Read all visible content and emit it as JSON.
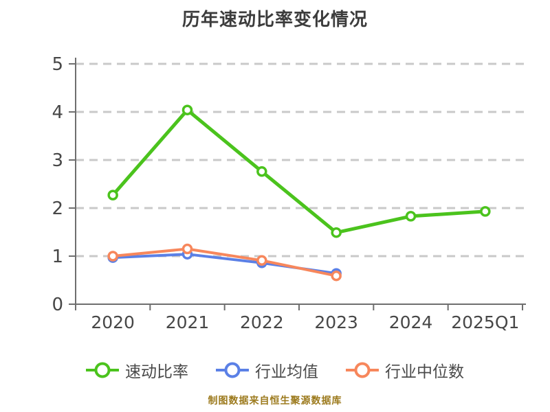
{
  "title": "历年速动比率变化情况",
  "source_note": "制图数据来自恒生聚源数据库",
  "chart_data": {
    "type": "line",
    "categories": [
      "2020",
      "2021",
      "2022",
      "2023",
      "2024",
      "2025Q1"
    ],
    "series": [
      {
        "name": "速动比率",
        "color": "#4bc31d",
        "values": [
          2.27,
          4.04,
          2.76,
          1.49,
          1.83,
          1.93
        ]
      },
      {
        "name": "行业均值",
        "color": "#5b80e6",
        "values": [
          0.97,
          1.04,
          0.86,
          0.64,
          null,
          null
        ]
      },
      {
        "name": "行业中位数",
        "color": "#f7875c",
        "values": [
          1.0,
          1.15,
          0.91,
          0.59,
          null,
          null
        ]
      }
    ],
    "xlabel": "",
    "ylabel": "",
    "ylim": [
      0,
      5
    ],
    "yticks": [
      0,
      1,
      2,
      3,
      4,
      5
    ],
    "grid": "horizontal-dashed",
    "legend_position": "bottom",
    "marker": "circle-white-fill",
    "colors": {
      "grid_line": "#c9c9c9",
      "axis_line": "#6e6e6e",
      "axis_label": "#474747",
      "title": "#3c3c3c",
      "legend_label": "#4a4a4a",
      "source_note": "#9c7a1d"
    }
  }
}
